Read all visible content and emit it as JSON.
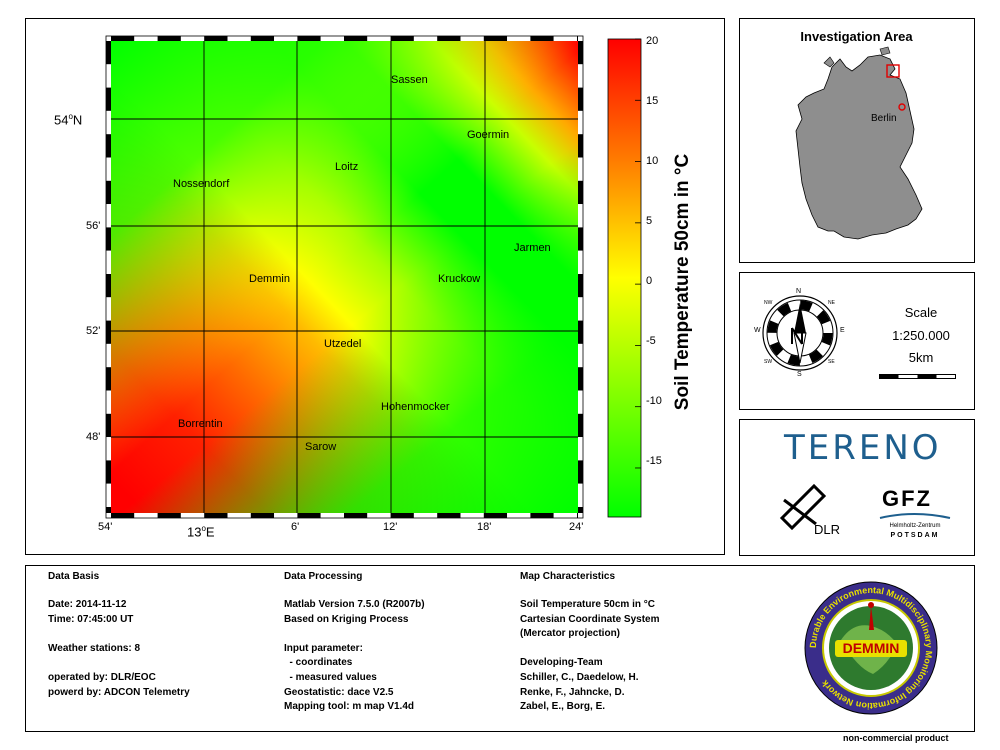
{
  "map": {
    "lat_ticks": [
      {
        "degree": "54",
        "minute": "N"
      },
      {
        "label": "56'"
      },
      {
        "label": "52'"
      },
      {
        "label": "48'"
      }
    ],
    "lon_ticks": [
      {
        "label": "54'"
      },
      {
        "degree": "13",
        "minute": "E"
      },
      {
        "label": "6'"
      },
      {
        "label": "12'"
      },
      {
        "label": "18'"
      },
      {
        "label": "24'"
      }
    ],
    "towns": [
      {
        "name": "Sassen"
      },
      {
        "name": "Goermin"
      },
      {
        "name": "Loitz"
      },
      {
        "name": "Nossendorf"
      },
      {
        "name": "Jarmen"
      },
      {
        "name": "Demmin"
      },
      {
        "name": "Kruckow"
      },
      {
        "name": "Utzedel"
      },
      {
        "name": "Hohenmocker"
      },
      {
        "name": "Borrentin"
      },
      {
        "name": "Sarow"
      }
    ],
    "colors": {
      "low": "#00ff00",
      "mid": "#ffff00",
      "upper": "#ff8c00",
      "high": "#ff0000"
    }
  },
  "colorbar": {
    "ticks": [
      "20",
      "15",
      "10",
      "5",
      "0",
      "-5",
      "-10",
      "-15"
    ],
    "range": [
      -19,
      20
    ],
    "label": "Soil Temperature 50cm in °C"
  },
  "investigation_area": {
    "title": "Investigation Area",
    "city": "Berlin"
  },
  "compass": {
    "n": "N",
    "s": "S",
    "e": "E",
    "w": "W",
    "ne": "NE",
    "nw": "NW",
    "se": "SE",
    "sw": "SW",
    "needle": "N"
  },
  "scale": {
    "title": "Scale",
    "ratio": "1:250.000",
    "distance": "5km"
  },
  "logos": {
    "tereno": "TERENO",
    "dlr": "DLR",
    "gfz": "GFZ",
    "gfz_sub1": "Helmholtz-Zentrum",
    "gfz_sub2": "POTSDAM"
  },
  "info": {
    "col1": {
      "header": "Data Basis",
      "lines": [
        "Date: 2014-11-12",
        "Time: 07:45:00 UT",
        "",
        "Weather stations: 8",
        "",
        "operated by: DLR/EOC",
        "powerd by: ADCON Telemetry"
      ]
    },
    "col2": {
      "header": "Data Processing",
      "lines": [
        "Matlab Version 7.5.0 (R2007b)",
        "Based on Kriging Process",
        "",
        "Input parameter:",
        "  - coordinates",
        "  - measured values",
        "Geostatistic: dace V2.5",
        "Mapping tool: m map V1.4d"
      ]
    },
    "col3": {
      "header": "Map Characteristics",
      "lines": [
        "Soil Temperature 50cm in °C",
        "Cartesian Coordinate System",
        "(Mercator projection)",
        "",
        "Developing-Team",
        "Schiller, C., Daedelow, H.",
        "Renke, F., Jahncke, D.",
        "Zabel, E., Borg, E."
      ]
    },
    "seal": {
      "ring_text": "Durable Environmental Multidisciplinary Monitoring Information Network",
      "center": "DEMMIN"
    }
  },
  "footer": "non-commercial product"
}
